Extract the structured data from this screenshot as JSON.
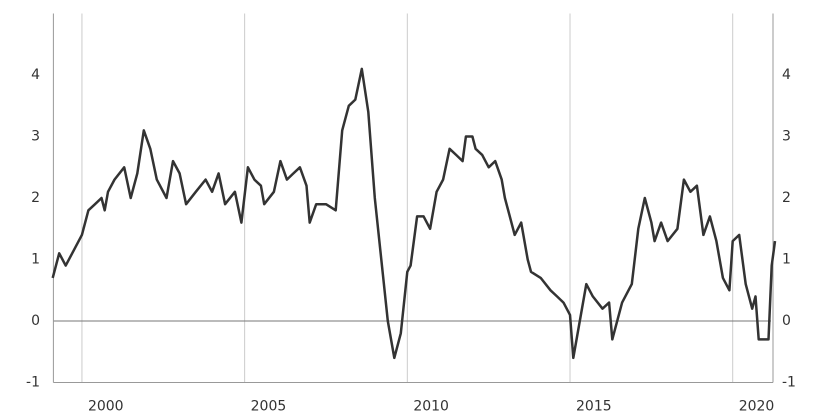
{
  "chart_data": {
    "type": "line",
    "x": [
      1999.1,
      1999.3,
      1999.5,
      1999.7,
      2000.0,
      2000.2,
      2000.4,
      2000.6,
      2000.7,
      2000.8,
      2001.0,
      2001.3,
      2001.5,
      2001.7,
      2001.9,
      2002.1,
      2002.3,
      2002.6,
      2002.8,
      2003.0,
      2003.2,
      2003.5,
      2003.8,
      2004.0,
      2004.2,
      2004.4,
      2004.7,
      2004.9,
      2005.1,
      2005.3,
      2005.5,
      2005.6,
      2005.9,
      2006.1,
      2006.3,
      2006.5,
      2006.7,
      2006.9,
      2007.0,
      2007.2,
      2007.5,
      2007.8,
      2008.0,
      2008.2,
      2008.4,
      2008.6,
      2008.8,
      2009.0,
      2009.2,
      2009.4,
      2009.6,
      2009.8,
      2010.0,
      2010.1,
      2010.3,
      2010.5,
      2010.7,
      2010.9,
      2011.1,
      2011.3,
      2011.5,
      2011.7,
      2011.8,
      2012.0,
      2012.1,
      2012.3,
      2012.5,
      2012.7,
      2012.9,
      2013.0,
      2013.3,
      2013.5,
      2013.7,
      2013.8,
      2014.1,
      2014.4,
      2014.6,
      2014.8,
      2015.0,
      2015.1,
      2015.3,
      2015.5,
      2015.7,
      2016.0,
      2016.2,
      2016.3,
      2016.6,
      2016.9,
      2017.1,
      2017.3,
      2017.5,
      2017.6,
      2017.8,
      2018.0,
      2018.3,
      2018.5,
      2018.7,
      2018.9,
      2019.1,
      2019.3,
      2019.5,
      2019.7,
      2019.9,
      2020.0,
      2020.2,
      2020.4,
      2020.6,
      2020.7,
      2020.8,
      2021.1,
      2021.2,
      2021.3
    ],
    "series": [
      {
        "color": "#333333",
        "values": [
          0.7,
          1.1,
          0.9,
          1.1,
          1.4,
          1.8,
          1.9,
          2.0,
          1.8,
          2.1,
          2.3,
          2.5,
          2.0,
          2.4,
          3.1,
          2.8,
          2.3,
          2.0,
          2.6,
          2.4,
          1.9,
          2.1,
          2.3,
          2.1,
          2.4,
          1.9,
          2.1,
          1.6,
          2.5,
          2.3,
          2.2,
          1.9,
          2.1,
          2.6,
          2.3,
          2.4,
          2.5,
          2.2,
          1.6,
          1.9,
          1.9,
          1.8,
          3.1,
          3.5,
          3.6,
          4.1,
          3.4,
          2.0,
          1.0,
          0.0,
          -0.6,
          -0.2,
          0.8,
          0.9,
          1.7,
          1.7,
          1.5,
          2.1,
          2.3,
          2.8,
          2.7,
          2.6,
          3.0,
          3.0,
          2.8,
          2.7,
          2.5,
          2.6,
          2.3,
          2.0,
          1.4,
          1.6,
          1.0,
          0.8,
          0.7,
          0.5,
          0.4,
          0.3,
          0.1,
          -0.6,
          0.0,
          0.6,
          0.4,
          0.2,
          0.3,
          -0.3,
          0.3,
          0.6,
          1.5,
          2.0,
          1.6,
          1.3,
          1.6,
          1.3,
          1.5,
          2.3,
          2.1,
          2.2,
          1.4,
          1.7,
          1.3,
          0.7,
          0.5,
          1.3,
          1.4,
          0.6,
          0.2,
          0.4,
          -0.3,
          -0.3,
          0.9,
          1.3
        ]
      }
    ],
    "xlim": [
      1999.0,
      2021.3
    ],
    "xticks": [
      2000,
      2005,
      2010,
      2015,
      2020
    ],
    "ylim": [
      -1,
      5
    ],
    "yticks": [
      -1,
      0,
      1,
      2,
      3,
      4
    ],
    "y2lim": [
      -1,
      5
    ],
    "y2ticks": [
      -1,
      0,
      1,
      2,
      3,
      4
    ],
    "grid": true
  }
}
